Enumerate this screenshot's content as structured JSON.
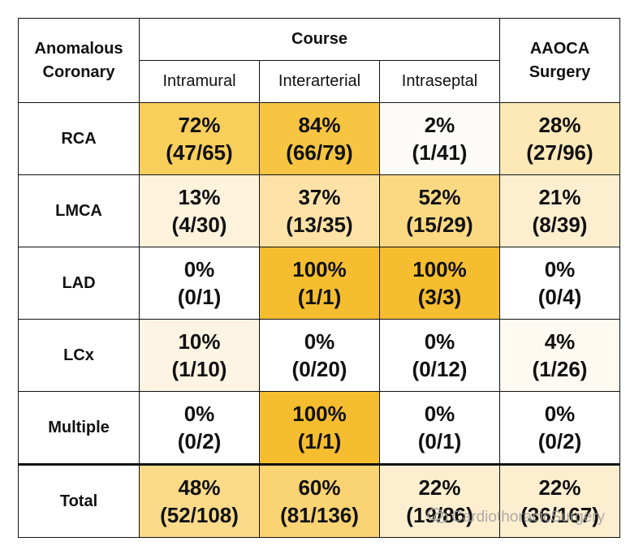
{
  "header": {
    "row_header": "Anomalous Coronary",
    "course": "Course",
    "sub_columns": [
      "Intramural",
      "Interarterial",
      "Intraseptal"
    ],
    "surgery": "AAOCA Surgery"
  },
  "rows": [
    {
      "label": "RCA",
      "cells": [
        {
          "pct": "72%",
          "frac": "(47/65)",
          "color": "#f9cf5c"
        },
        {
          "pct": "84%",
          "frac": "(66/79)",
          "color": "#f7c542"
        },
        {
          "pct": "2%",
          "frac": "(1/41)",
          "color": "#fdfbf7"
        },
        {
          "pct": "28%",
          "frac": "(27/96)",
          "color": "#fde8b8"
        }
      ]
    },
    {
      "label": "LMCA",
      "cells": [
        {
          "pct": "13%",
          "frac": "(4/30)",
          "color": "#fdf2dc"
        },
        {
          "pct": "37%",
          "frac": "(13/35)",
          "color": "#fce2a6"
        },
        {
          "pct": "52%",
          "frac": "(15/29)",
          "color": "#fbd983"
        },
        {
          "pct": "21%",
          "frac": "(8/39)",
          "color": "#fdeed0"
        }
      ]
    },
    {
      "label": "LAD",
      "cells": [
        {
          "pct": "0%",
          "frac": "(0/1)",
          "color": "#ffffff"
        },
        {
          "pct": "100%",
          "frac": "(1/1)",
          "color": "#f5bd2f"
        },
        {
          "pct": "100%",
          "frac": "(3/3)",
          "color": "#f5bd2f"
        },
        {
          "pct": "0%",
          "frac": "(0/4)",
          "color": "#ffffff"
        }
      ]
    },
    {
      "label": "LCx",
      "cells": [
        {
          "pct": "10%",
          "frac": "(1/10)",
          "color": "#fdf4e3"
        },
        {
          "pct": "0%",
          "frac": "(0/20)",
          "color": "#ffffff"
        },
        {
          "pct": "0%",
          "frac": "(0/12)",
          "color": "#ffffff"
        },
        {
          "pct": "4%",
          "frac": "(1/26)",
          "color": "#fefaf1"
        }
      ]
    },
    {
      "label": "Multiple",
      "cells": [
        {
          "pct": "0%",
          "frac": "(0/2)",
          "color": "#ffffff"
        },
        {
          "pct": "100%",
          "frac": "(1/1)",
          "color": "#f5bd2f"
        },
        {
          "pct": "0%",
          "frac": "(0/1)",
          "color": "#ffffff"
        },
        {
          "pct": "0%",
          "frac": "(0/2)",
          "color": "#ffffff"
        }
      ]
    }
  ],
  "total": {
    "label": "Total",
    "cells": [
      {
        "pct": "48%",
        "frac": "(52/108)",
        "color": "#fbdb8a"
      },
      {
        "pct": "60%",
        "frac": "(81/136)",
        "color": "#fad373"
      },
      {
        "pct": "22%",
        "frac": "(19/86)",
        "color": "#fdeed0"
      },
      {
        "pct": "22%",
        "frac": "(36/167)",
        "color": "#fdeed0"
      }
    ]
  },
  "watermark": "CardiothoracicSurgery"
}
